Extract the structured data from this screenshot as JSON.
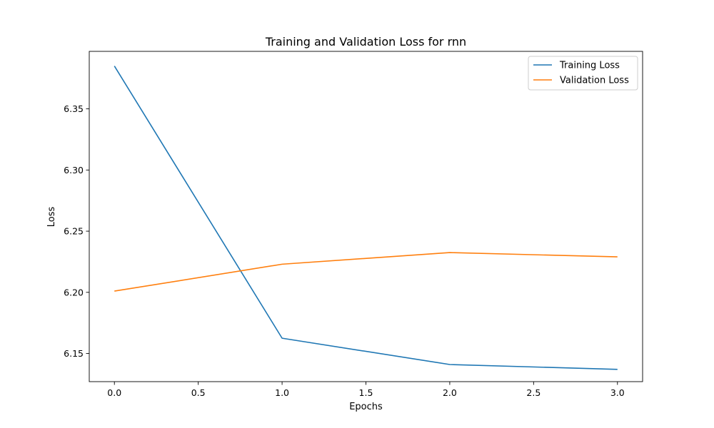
{
  "chart_data": {
    "type": "line",
    "title": "Training and Validation Loss for rnn",
    "xlabel": "Epochs",
    "ylabel": "Loss",
    "xlim": [
      -0.15,
      3.15
    ],
    "ylim": [
      6.127,
      6.397
    ],
    "xticks": [
      0.0,
      0.5,
      1.0,
      1.5,
      2.0,
      2.5,
      3.0
    ],
    "xtick_labels": [
      "0.0",
      "0.5",
      "1.0",
      "1.5",
      "2.0",
      "2.5",
      "3.0"
    ],
    "yticks": [
      6.15,
      6.2,
      6.25,
      6.3,
      6.35
    ],
    "ytick_labels": [
      "6.15",
      "6.20",
      "6.25",
      "6.30",
      "6.35"
    ],
    "grid": false,
    "legend_position": "top-right",
    "x": [
      0,
      1,
      2,
      3
    ],
    "series": [
      {
        "name": "Training Loss",
        "color": "#1f77b4",
        "values": [
          6.385,
          6.1625,
          6.141,
          6.137
        ]
      },
      {
        "name": "Validation Loss",
        "color": "#ff7f0e",
        "values": [
          6.201,
          6.223,
          6.2325,
          6.229
        ]
      }
    ]
  }
}
